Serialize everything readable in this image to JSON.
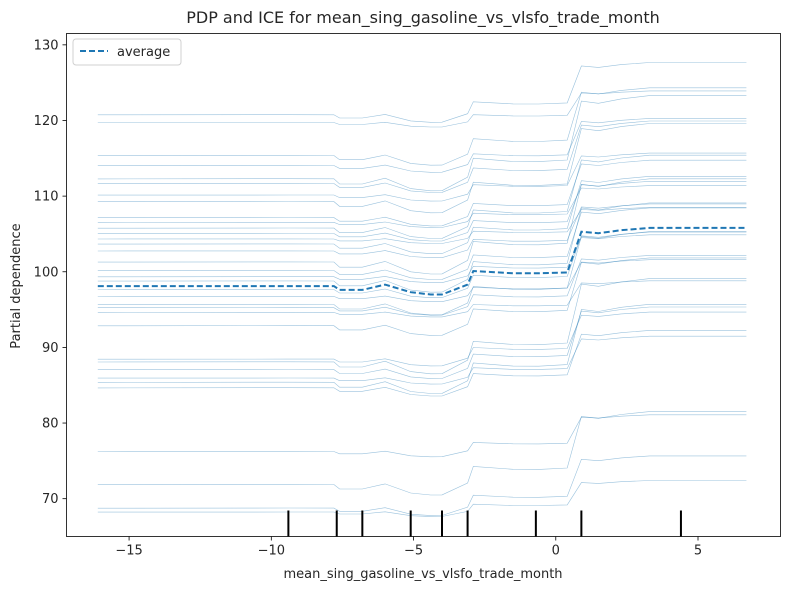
{
  "chart_data": {
    "type": "line",
    "title": "PDP and ICE for mean_sing_gasoline_vs_vlsfo_trade_month",
    "xlabel": "mean_sing_gasoline_vs_vlsfo_trade_month",
    "ylabel": "Partial dependence",
    "xlim": [
      -17.2,
      7.9
    ],
    "ylim": [
      65,
      131.5
    ],
    "xticks": [
      -15,
      -10,
      -5,
      0,
      5
    ],
    "yticks": [
      70,
      80,
      90,
      100,
      110,
      120,
      130
    ],
    "grid": false,
    "legend": {
      "position": "top-left",
      "entries": [
        "average"
      ]
    },
    "colors": {
      "average": "#1f77b4",
      "ice": "#1f77b4",
      "rug": "#000000"
    },
    "x": [
      -16.1,
      -9.4,
      -7.8,
      -7.6,
      -6.8,
      -6.0,
      -5.1,
      -4.4,
      -4.0,
      -3.1,
      -2.9,
      -1.5,
      -0.6,
      0.4,
      0.9,
      1.5,
      2.3,
      3.3,
      6.7
    ],
    "average": {
      "name": "average",
      "values": [
        98.1,
        98.1,
        98.1,
        97.6,
        97.6,
        98.3,
        97.3,
        97.0,
        97.0,
        98.3,
        100.1,
        99.8,
        99.8,
        99.9,
        105.3,
        105.1,
        105.5,
        105.8,
        105.8
      ]
    },
    "ice_offsets": [
      0.05,
      0.07,
      0.06,
      -0.41,
      -0.41,
      0.12,
      -0.83,
      -1.03,
      -1.02,
      0.21,
      1.94,
      1.64,
      1.63,
      1.78,
      7.15,
      6.95,
      7.35,
      7.65,
      7.65
    ],
    "ice_bases": [
      68.2,
      68.7,
      71.8,
      76.2,
      84.6,
      85.3,
      85.9,
      87.0,
      88.0,
      88.4,
      92.8,
      94.6,
      95.2,
      95.6,
      96.7,
      97.6,
      98.7,
      99.3,
      100.1,
      101.2,
      102.7,
      103.6,
      104.3,
      105.0,
      105.7,
      106.5,
      107.1,
      109.2,
      110.1,
      111.6,
      112.2,
      114.0,
      115.3,
      119.7,
      120.7
    ],
    "rug_x": [
      -9.4,
      -7.7,
      -6.8,
      -5.1,
      -4.0,
      -3.1,
      -0.7,
      0.9,
      4.4
    ]
  }
}
